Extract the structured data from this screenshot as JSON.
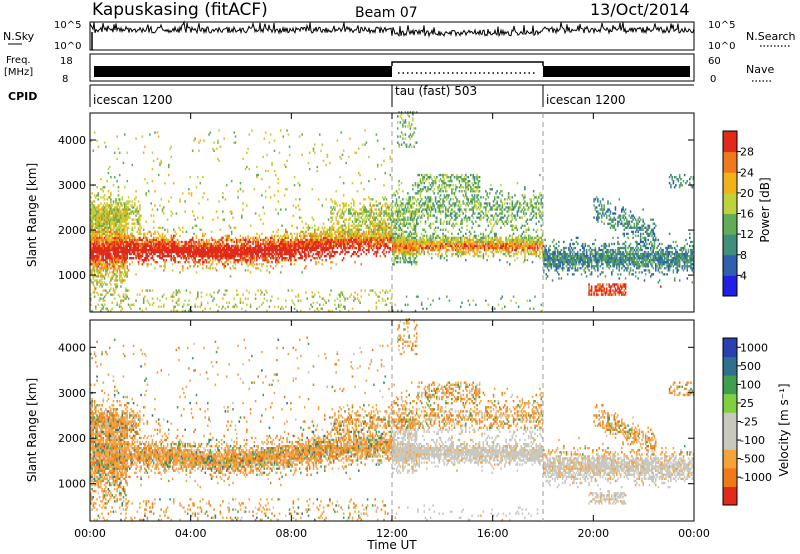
{
  "header": {
    "station": "Kapuskasing (fitACF)",
    "beam": "Beam 07",
    "date": "13/Oct/2014"
  },
  "top_panels": {
    "nsky_label": "N.Sky",
    "nsky_ticks": [
      "10^5",
      "10^0"
    ],
    "nsearch_label": "N.Search",
    "nsearch_ticks": [
      "10^5",
      "10^0"
    ],
    "freq_label": "Freq.",
    "freq_unit": "[MHz]",
    "freq_ticks": [
      "18",
      "8"
    ],
    "nave_label": "Nave",
    "nave_ticks": [
      "60",
      "0"
    ],
    "cpid_label": "CPID",
    "cpid_segments": [
      {
        "label": "icescan 1200",
        "start_h": 0,
        "end_h": 12
      },
      {
        "label": "tau (fast) 503",
        "start_h": 12,
        "end_h": 18
      },
      {
        "label": "icescan 1200",
        "start_h": 18,
        "end_h": 24
      }
    ]
  },
  "chart_data": [
    {
      "type": "heatmap",
      "name": "power",
      "ylabel": "Slant Range [km]",
      "ylim": [
        180,
        4600
      ],
      "xlim": [
        0,
        24
      ],
      "yticks": [
        "1000",
        "2000",
        "3000",
        "4000"
      ],
      "colorbar_label": "Power [dB]",
      "colorbar_ticks": [
        "4",
        "8",
        "12",
        "16",
        "20",
        "24",
        "28"
      ],
      "colors": [
        "#1f1fe6",
        "#2f5fae",
        "#3f8f7a",
        "#62ac55",
        "#bfd23a",
        "#f2b21a",
        "#f07a1a",
        "#e02a1a"
      ]
    },
    {
      "type": "heatmap",
      "name": "velocity",
      "ylabel": "Slant Range [km]",
      "xlabel": "Time UT",
      "ylim": [
        180,
        4600
      ],
      "xlim": [
        0,
        24
      ],
      "yticks": [
        "1000",
        "2000",
        "3000",
        "4000"
      ],
      "xticks": [
        "00:00",
        "04:00",
        "08:00",
        "12:00",
        "16:00",
        "20:00",
        "00:00"
      ],
      "colorbar_label": "Velocity [m s⁻¹]",
      "colorbar_ticks": [
        "1000",
        "500",
        "100",
        "25",
        "-25",
        "-100",
        "-500",
        "-1000"
      ],
      "colors": [
        "#2a3fb0",
        "#2f6f8f",
        "#3f9f4f",
        "#7fd03f",
        "#c8c8c0",
        "#c8c8c0",
        "#f5a23a",
        "#f07a1a",
        "#e02a1a"
      ]
    }
  ]
}
